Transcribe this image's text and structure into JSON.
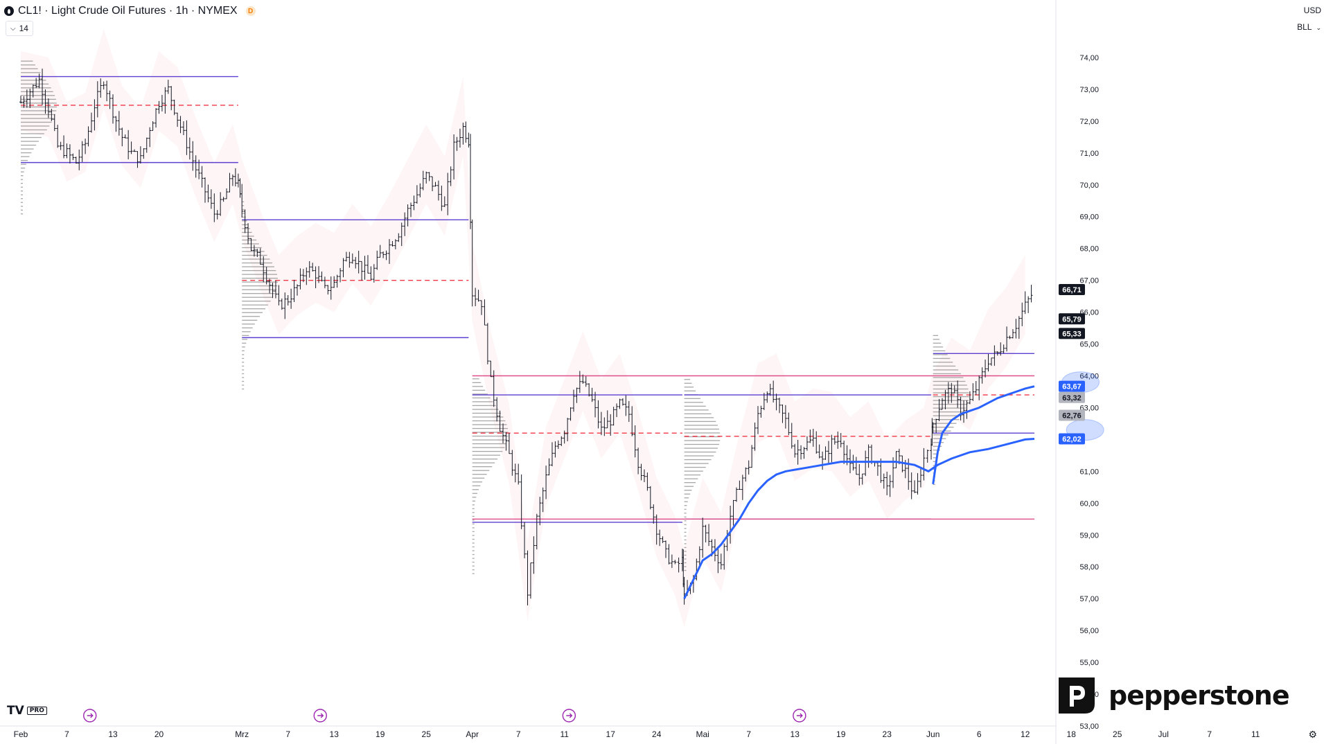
{
  "header": {
    "title": "CL1! · Light Crude Oil Futures · 1h · NYMEX",
    "badge": "D",
    "indicator_value": "14"
  },
  "price_axis": {
    "currency": "USD",
    "mode": "BLL"
  },
  "logo": {
    "mark": "TV",
    "badge": "PRO"
  },
  "brand": {
    "name": "pepperstone"
  },
  "colors": {
    "candle": "#131722",
    "vwap": "#2962ff",
    "poc": "#f23645",
    "value_area": "#5b3fd1",
    "level": "#e04e8a",
    "volume_profile": "#8a8a8a",
    "price_label_dark": "#131722",
    "price_label_blue": "#2962ff",
    "price_label_gray": "#b2b5be"
  },
  "chart_data": {
    "type": "candlestick",
    "yrange": [
      53,
      74.5
    ],
    "ytick_labels": [
      "74,00",
      "73,00",
      "72,00",
      "71,00",
      "70,00",
      "69,00",
      "68,00",
      "67,00",
      "66,00",
      "65,00",
      "64,00",
      "63,00",
      "61,00",
      "60,00",
      "59,00",
      "58,00",
      "57,00",
      "56,00",
      "55,00",
      "54,00",
      "53,00"
    ],
    "xticks": [
      {
        "label": "Feb",
        "pos": 0.0
      },
      {
        "label": "7",
        "pos": 5.0
      },
      {
        "label": "13",
        "pos": 10.0
      },
      {
        "label": "20",
        "pos": 15.0
      },
      {
        "label": "Mrz",
        "pos": 24.0
      },
      {
        "label": "7",
        "pos": 29.0
      },
      {
        "label": "13",
        "pos": 34.0
      },
      {
        "label": "19",
        "pos": 39.0
      },
      {
        "label": "25",
        "pos": 44.0
      },
      {
        "label": "Apr",
        "pos": 49.0
      },
      {
        "label": "7",
        "pos": 54.0
      },
      {
        "label": "11",
        "pos": 59.0
      },
      {
        "label": "17",
        "pos": 64.0
      },
      {
        "label": "24",
        "pos": 69.0
      },
      {
        "label": "Mai",
        "pos": 74.0
      },
      {
        "label": "7",
        "pos": 79.0
      },
      {
        "label": "13",
        "pos": 84.0
      },
      {
        "label": "19",
        "pos": 89.0
      },
      {
        "label": "23",
        "pos": 94.0
      },
      {
        "label": "Jun",
        "pos": 99.0
      },
      {
        "label": "6",
        "pos": 104.0
      },
      {
        "label": "12",
        "pos": 109.0
      },
      {
        "label": "18",
        "pos": 114.0
      },
      {
        "label": "25",
        "pos": 119.0
      },
      {
        "label": "Jul",
        "pos": 124.0
      },
      {
        "label": "7",
        "pos": 129.0
      },
      {
        "label": "11",
        "pos": 134.0
      }
    ],
    "event_markers": [
      7.5,
      32.5,
      59.5,
      84.5
    ],
    "close_path": [
      [
        0,
        72.6
      ],
      [
        2,
        73.3
      ],
      [
        3,
        72.4
      ],
      [
        4,
        71.2
      ],
      [
        5,
        71.0
      ],
      [
        6,
        70.7
      ],
      [
        7,
        71.3
      ],
      [
        8,
        72.5
      ],
      [
        9,
        73.3
      ],
      [
        10,
        72.3
      ],
      [
        11,
        71.5
      ],
      [
        12,
        71.0
      ],
      [
        13,
        70.8
      ],
      [
        14,
        71.8
      ],
      [
        15,
        72.6
      ],
      [
        16,
        73.0
      ],
      [
        17,
        72.1
      ],
      [
        18,
        71.3
      ],
      [
        19,
        70.5
      ],
      [
        20,
        69.8
      ],
      [
        21,
        69.1
      ],
      [
        22,
        69.5
      ],
      [
        23,
        70.3
      ],
      [
        23.6,
        70.0
      ],
      [
        24,
        69.2
      ],
      [
        25,
        68.0
      ],
      [
        26,
        67.6
      ],
      [
        27,
        66.9
      ],
      [
        28,
        66.2
      ],
      [
        29,
        66.4
      ],
      [
        30,
        66.8
      ],
      [
        31,
        67.4
      ],
      [
        32,
        67.2
      ],
      [
        33,
        66.7
      ],
      [
        34,
        66.9
      ],
      [
        35,
        67.6
      ],
      [
        36,
        67.8
      ],
      [
        37,
        67.4
      ],
      [
        38,
        67.1
      ],
      [
        39,
        67.8
      ],
      [
        40,
        68.1
      ],
      [
        41,
        68.5
      ],
      [
        42,
        69.2
      ],
      [
        43,
        69.7
      ],
      [
        44,
        70.3
      ],
      [
        45,
        69.9
      ],
      [
        46,
        69.3
      ],
      [
        47,
        71.2
      ],
      [
        48,
        71.8
      ],
      [
        48.6,
        71.4
      ],
      [
        49,
        66.6
      ],
      [
        50,
        66.3
      ],
      [
        51,
        63.8
      ],
      [
        52,
        62.4
      ],
      [
        53,
        61.5
      ],
      [
        54,
        60.5
      ],
      [
        55,
        57.2
      ],
      [
        56,
        59.5
      ],
      [
        57,
        60.8
      ],
      [
        58,
        61.8
      ],
      [
        59,
        62.3
      ],
      [
        60,
        63.5
      ],
      [
        61,
        63.8
      ],
      [
        62,
        63.2
      ],
      [
        63,
        62.3
      ],
      [
        64,
        62.6
      ],
      [
        65,
        63.1
      ],
      [
        66,
        62.8
      ],
      [
        67,
        61.3
      ],
      [
        68,
        60.4
      ],
      [
        69,
        59.2
      ],
      [
        70,
        58.4
      ],
      [
        71,
        58.0
      ],
      [
        71.8,
        58.2
      ],
      [
        72,
        57.0
      ],
      [
        73,
        57.6
      ],
      [
        74,
        59.2
      ],
      [
        75,
        58.6
      ],
      [
        76,
        58.1
      ],
      [
        77,
        59.6
      ],
      [
        78,
        60.6
      ],
      [
        79,
        61.2
      ],
      [
        80,
        62.8
      ],
      [
        81,
        63.6
      ],
      [
        82,
        63.1
      ],
      [
        83,
        62.6
      ],
      [
        84,
        61.6
      ],
      [
        85,
        61.8
      ],
      [
        86,
        62.0
      ],
      [
        87,
        61.3
      ],
      [
        88,
        61.9
      ],
      [
        89,
        62.0
      ],
      [
        90,
        61.1
      ],
      [
        91,
        60.8
      ],
      [
        92,
        61.6
      ],
      [
        93,
        61.1
      ],
      [
        94,
        60.4
      ],
      [
        95,
        61.5
      ],
      [
        96,
        61.0
      ],
      [
        97,
        60.2
      ],
      [
        98,
        61.4
      ],
      [
        98.8,
        62.0
      ],
      [
        99,
        62.5
      ],
      [
        100,
        63.3
      ],
      [
        101,
        63.6
      ],
      [
        102,
        62.9
      ],
      [
        103,
        63.2
      ],
      [
        104,
        63.8
      ],
      [
        105,
        64.5
      ],
      [
        106,
        64.7
      ],
      [
        107,
        65.2
      ],
      [
        108,
        65.6
      ],
      [
        109,
        66.2
      ],
      [
        110,
        66.71
      ]
    ],
    "vwap_lines": [
      {
        "from": 72,
        "points": [
          [
            72,
            57.0
          ],
          [
            73,
            57.6
          ],
          [
            74,
            58.2
          ],
          [
            75,
            58.4
          ],
          [
            76,
            58.7
          ],
          [
            77,
            59.1
          ],
          [
            78,
            59.5
          ],
          [
            79,
            60.0
          ],
          [
            80,
            60.4
          ],
          [
            81,
            60.7
          ],
          [
            82,
            60.9
          ],
          [
            83,
            61.0
          ],
          [
            85,
            61.1
          ],
          [
            87,
            61.2
          ],
          [
            89,
            61.3
          ],
          [
            91,
            61.3
          ],
          [
            93,
            61.3
          ],
          [
            95,
            61.3
          ],
          [
            97,
            61.2
          ],
          [
            98.5,
            61.0
          ],
          [
            99.5,
            61.2
          ],
          [
            101,
            61.4
          ],
          [
            103,
            61.6
          ],
          [
            105,
            61.7
          ],
          [
            107,
            61.85
          ],
          [
            109,
            62.0
          ],
          [
            110,
            62.02
          ]
        ]
      },
      {
        "from": 99,
        "points": [
          [
            99,
            60.6
          ],
          [
            99.5,
            61.6
          ],
          [
            100,
            62.2
          ],
          [
            101,
            62.6
          ],
          [
            102,
            62.8
          ],
          [
            103,
            62.9
          ],
          [
            104,
            63.0
          ],
          [
            105,
            63.15
          ],
          [
            106,
            63.3
          ],
          [
            107,
            63.4
          ],
          [
            108,
            63.5
          ],
          [
            109,
            63.6
          ],
          [
            110,
            63.67
          ]
        ]
      }
    ],
    "sessions": [
      {
        "start": 0,
        "end": 23.6,
        "vah": 73.4,
        "poc": 72.5,
        "val": 70.7
      },
      {
        "start": 24,
        "end": 48.6,
        "vah": 68.9,
        "poc": 67.0,
        "val": 65.2
      },
      {
        "start": 49,
        "end": 71.8,
        "vah": 63.4,
        "poc": 62.2,
        "val": 59.4
      },
      {
        "start": 72,
        "end": 98.8,
        "vah": 63.4,
        "poc": 62.1,
        "val": 59.5
      },
      {
        "start": 99,
        "end": 110,
        "vah": 64.7,
        "poc": 63.4,
        "val": 62.2
      }
    ],
    "levels": [
      {
        "price": 64.0,
        "from": 49,
        "to": 110
      },
      {
        "price": 59.5,
        "from": 49,
        "to": 110
      }
    ],
    "price_labels": [
      {
        "text": "66,71",
        "value": 66.71,
        "style": "dark"
      },
      {
        "text": "65,79",
        "value": 65.79,
        "style": "dark"
      },
      {
        "text": "65,33",
        "value": 65.33,
        "style": "dark"
      },
      {
        "text": "63,67",
        "value": 63.67,
        "style": "blue"
      },
      {
        "text": "63,32",
        "value": 63.32,
        "style": "gray"
      },
      {
        "text": "62,76",
        "value": 62.76,
        "style": "gray"
      },
      {
        "text": "62,02",
        "value": 62.02,
        "style": "blue"
      }
    ],
    "ellipses": [
      {
        "x": 115.0,
        "price": 63.8
      },
      {
        "x": 115.5,
        "price": 62.3
      }
    ]
  }
}
